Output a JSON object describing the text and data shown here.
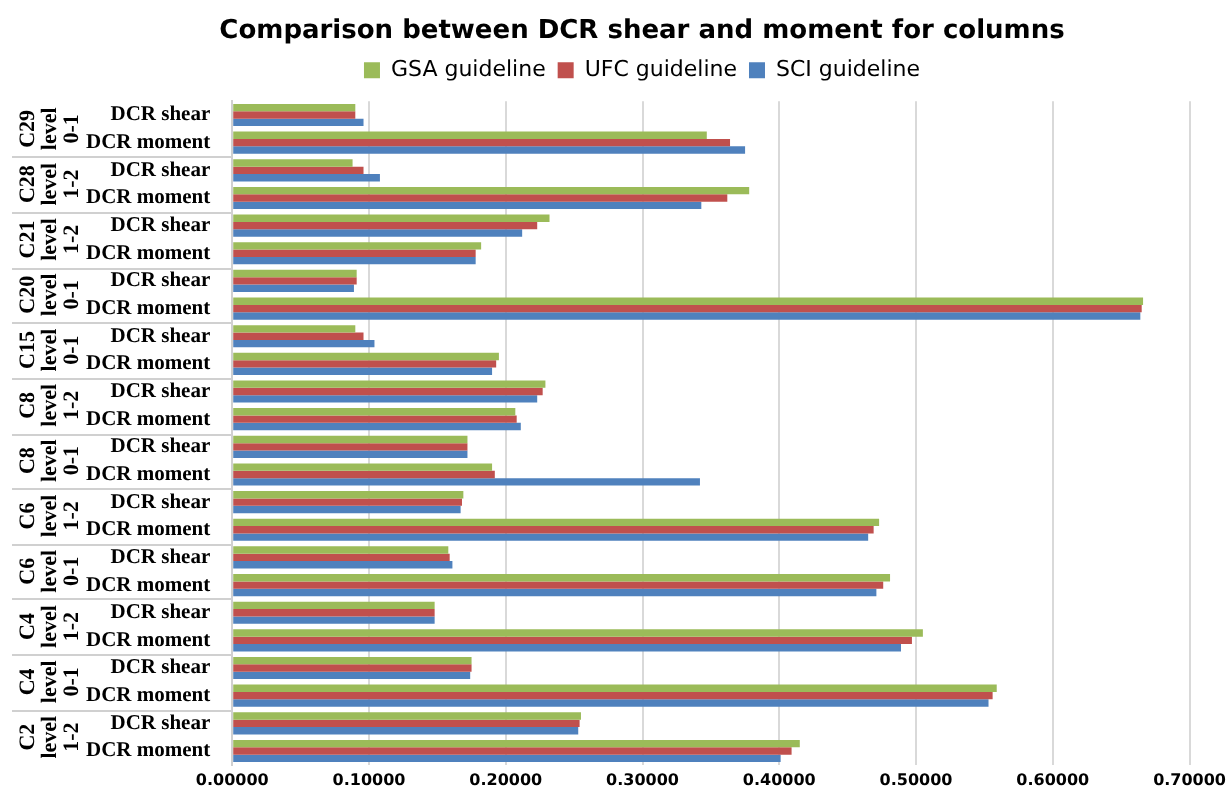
{
  "chart_data": {
    "type": "bar",
    "orientation": "horizontal",
    "title": "Comparison between DCR shear and moment for columns",
    "categories": [
      "DCR shear",
      "DCR moment",
      "DCR shear",
      "DCR moment",
      "DCR shear",
      "DCR moment",
      "DCR shear",
      "DCR moment",
      "DCR shear",
      "DCR moment",
      "DCR shear",
      "DCR moment",
      "DCR shear",
      "DCR moment",
      "DCR shear",
      "DCR moment",
      "DCR shear",
      "DCR moment",
      "DCR shear",
      "DCR moment",
      "DCR shear",
      "DCR moment",
      "DCR shear",
      "DCR moment"
    ],
    "series": [
      {
        "name": "GSA guideline",
        "color": "#9bbb59",
        "values": [
          0.09,
          0.347,
          0.088,
          0.378,
          0.232,
          0.182,
          0.091,
          0.666,
          0.09,
          0.195,
          0.229,
          0.207,
          0.172,
          0.19,
          0.169,
          0.473,
          0.158,
          0.481,
          0.148,
          0.505,
          0.175,
          0.559,
          0.255,
          0.415
        ]
      },
      {
        "name": "UFC guideline",
        "color": "#c0504d",
        "values": [
          0.09,
          0.364,
          0.096,
          0.362,
          0.223,
          0.178,
          0.091,
          0.665,
          0.096,
          0.193,
          0.227,
          0.208,
          0.172,
          0.192,
          0.168,
          0.469,
          0.159,
          0.476,
          0.148,
          0.497,
          0.175,
          0.556,
          0.254,
          0.409
        ]
      },
      {
        "name": "SCI guideline",
        "color": "#4f81bd",
        "values": [
          0.096,
          0.375,
          0.108,
          0.343,
          0.212,
          0.178,
          0.089,
          0.664,
          0.104,
          0.19,
          0.223,
          0.211,
          0.172,
          0.342,
          0.167,
          0.465,
          0.161,
          0.471,
          0.148,
          0.489,
          0.174,
          0.553,
          0.253,
          0.401
        ]
      }
    ],
    "xlim": [
      0,
      0.7
    ],
    "xticks": [
      {
        "value": 0,
        "label": "0.00000"
      },
      {
        "value": 0.1,
        "label": "0.10000"
      },
      {
        "value": 0.2,
        "label": "0.20000"
      },
      {
        "value": 0.3,
        "label": "0.30000"
      },
      {
        "value": 0.4,
        "label": "0.40000"
      },
      {
        "value": 0.5,
        "label": "0.50000"
      },
      {
        "value": 0.6,
        "label": "0.60000"
      },
      {
        "value": 0.7,
        "label": "0.70000"
      }
    ],
    "annotations": [
      "C29 level 0-1",
      "C28 level 1-2",
      "C21 level 1-2",
      "C20 level 0-1",
      "C15 level 0-1",
      "C8 level 1-2",
      "C8 level 0-1",
      "C6 level 1-2",
      "C6 level 0-1",
      "C4 level 1-2",
      "C4 level 0-1",
      "C2 level 1-2"
    ],
    "grid": "x",
    "legend": "top"
  }
}
